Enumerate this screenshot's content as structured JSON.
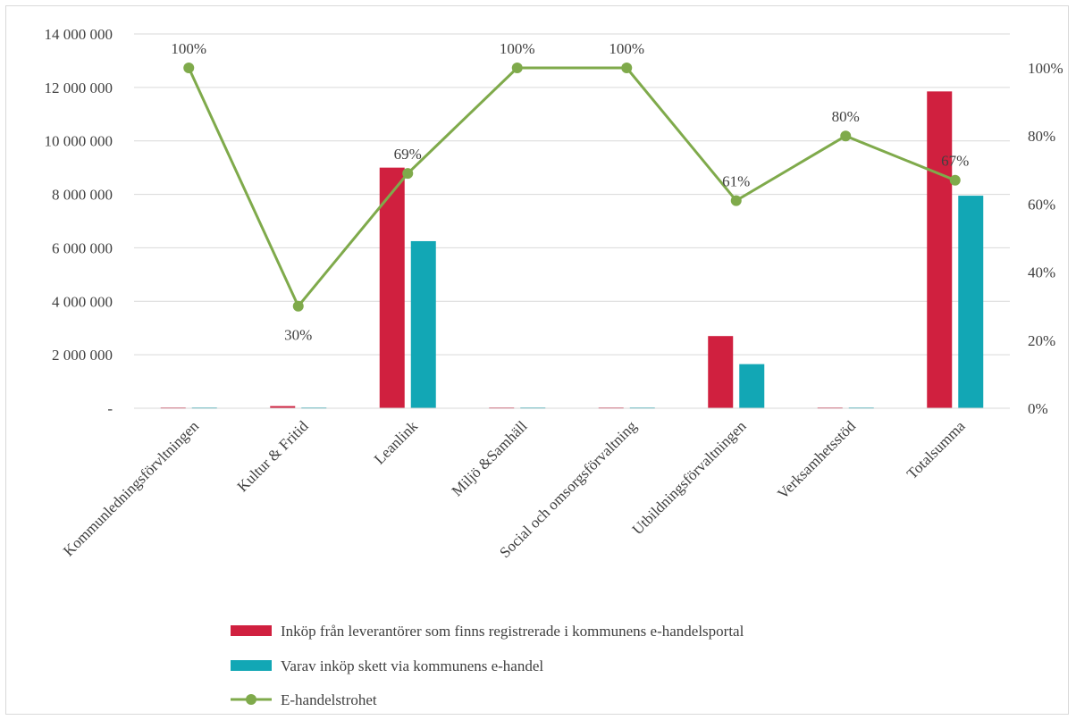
{
  "chart_data": {
    "type": "bar",
    "categories": [
      "Kommunledningsförvltningen",
      "Kultur & Fritid",
      "Leanlink",
      "Miljö &Samhäll",
      "Social och omsorgsförvaltning",
      "Utbildningsförvaltningen",
      "Verksamhetsstöd",
      "Totalsumma"
    ],
    "series": [
      {
        "name": "Inköp från leverantörer som finns registrerade i kommunens e-handelsportal",
        "type": "bar",
        "axis": "left",
        "color": "#d0203f",
        "values": [
          30000,
          80000,
          9000000,
          30000,
          30000,
          2700000,
          30000,
          11850000
        ]
      },
      {
        "name": "Varav inköp skett via kommunens e-handel",
        "type": "bar",
        "axis": "left",
        "color": "#12a7b5",
        "values": [
          30000,
          30000,
          6250000,
          30000,
          30000,
          1650000,
          30000,
          7950000
        ]
      },
      {
        "name": "E-handelstrohet",
        "type": "line",
        "axis": "right",
        "color": "#7faa4b",
        "values": [
          1.0,
          0.3,
          0.69,
          1.0,
          1.0,
          0.61,
          0.8,
          0.67
        ],
        "labels": [
          "100%",
          "30%",
          "69%",
          "100%",
          "100%",
          "61%",
          "80%",
          "67%"
        ]
      }
    ],
    "y_left": {
      "ylim": [
        0,
        14000000
      ],
      "ticks": [
        0,
        2000000,
        4000000,
        6000000,
        8000000,
        10000000,
        12000000,
        14000000
      ],
      "tick_labels": [
        "-",
        "2 000 000",
        "4 000 000",
        "6 000 000",
        "8 000 000",
        "10 000 000",
        "12 000 000",
        "14 000 000"
      ]
    },
    "y_right": {
      "ylim": [
        0,
        1.1
      ],
      "ticks": [
        0,
        0.2,
        0.4,
        0.6,
        0.8,
        1.0
      ],
      "tick_labels": [
        "0%",
        "20%",
        "40%",
        "60%",
        "80%",
        "100%"
      ]
    },
    "grid": true,
    "legend_position": "bottom"
  }
}
